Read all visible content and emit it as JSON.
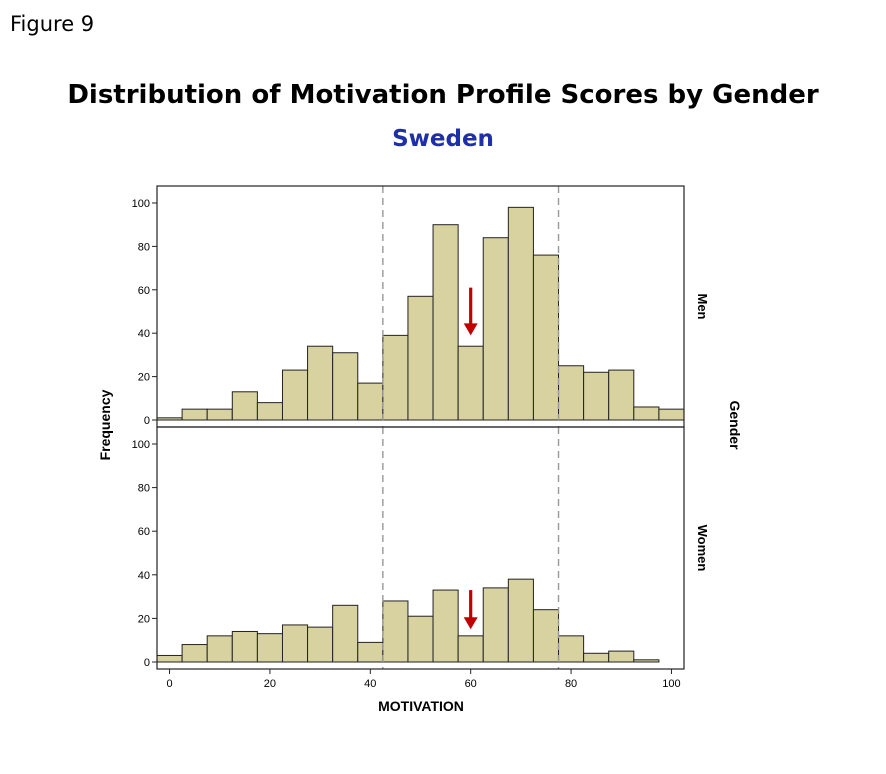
{
  "figure_label": "Figure 9",
  "chart_data": {
    "type": "bar",
    "title": "Distribution of Motivation Profile Scores by Gender",
    "subtitle": "Sweden",
    "xlabel": "MOTIVATION",
    "ylabel": "Frequency",
    "facet_label": "Gender",
    "xlim": [
      -2.5,
      102.5
    ],
    "x_ticks": [
      0,
      20,
      40,
      60,
      80,
      100
    ],
    "y_ticks": [
      0,
      20,
      40,
      60,
      80,
      100
    ],
    "bin_width": 5,
    "bin_centers": [
      0,
      5,
      10,
      15,
      20,
      25,
      30,
      35,
      40,
      45,
      50,
      55,
      60,
      65,
      70,
      75,
      80,
      85,
      90,
      95,
      100
    ],
    "reference_lines": [
      42.5,
      77.5
    ],
    "bar_color": "#d7d29f",
    "arrow_color": "#c00000",
    "series": [
      {
        "name": "Men",
        "ylim": [
          0,
          105
        ],
        "values": [
          1,
          5,
          5,
          13,
          8,
          23,
          34,
          31,
          17,
          39,
          57,
          90,
          34,
          84,
          98,
          76,
          25,
          22,
          23,
          6,
          5
        ],
        "arrow_x": 60
      },
      {
        "name": "Women",
        "ylim": [
          0,
          105
        ],
        "values": [
          3,
          8,
          12,
          14,
          13,
          17,
          16,
          26,
          9,
          28,
          21,
          33,
          12,
          34,
          38,
          24,
          12,
          4,
          5,
          1,
          0
        ],
        "arrow_x": 60
      }
    ]
  }
}
